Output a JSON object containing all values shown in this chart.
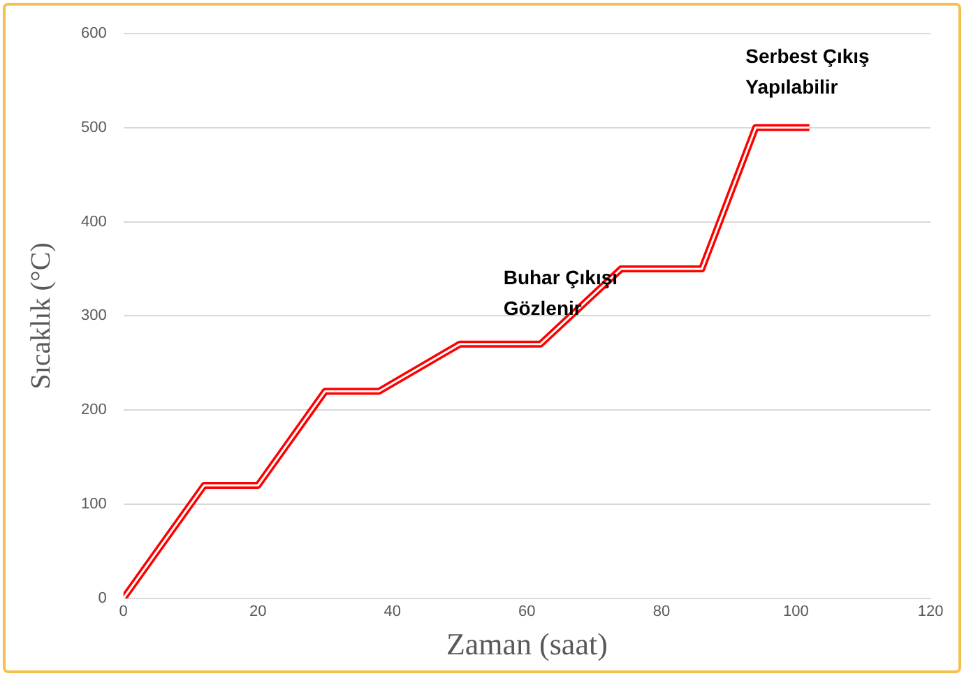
{
  "chart_data": {
    "type": "line",
    "xlabel": "Zaman (saat)",
    "ylabel": "Sıcaklık (°C)",
    "x": [
      0,
      12,
      20,
      30,
      38,
      50,
      62,
      74,
      86,
      94,
      102
    ],
    "series": [
      {
        "color": "#ff0000",
        "values": [
          0,
          120,
          120,
          220,
          220,
          270,
          270,
          350,
          350,
          500,
          500
        ]
      }
    ],
    "xlim": [
      0,
      120
    ],
    "xticks": [
      0,
      20,
      40,
      60,
      80,
      100,
      120
    ],
    "ylim": [
      0,
      600
    ],
    "yticks": [
      0,
      100,
      200,
      300,
      400,
      500,
      600
    ],
    "grid": "y",
    "legend": false,
    "marker": "none",
    "line_style": "solid",
    "annotations": [
      "Buhar Çıkışı\nGözlenir",
      "Serbest Çıkış\nYapılabilir"
    ]
  }
}
